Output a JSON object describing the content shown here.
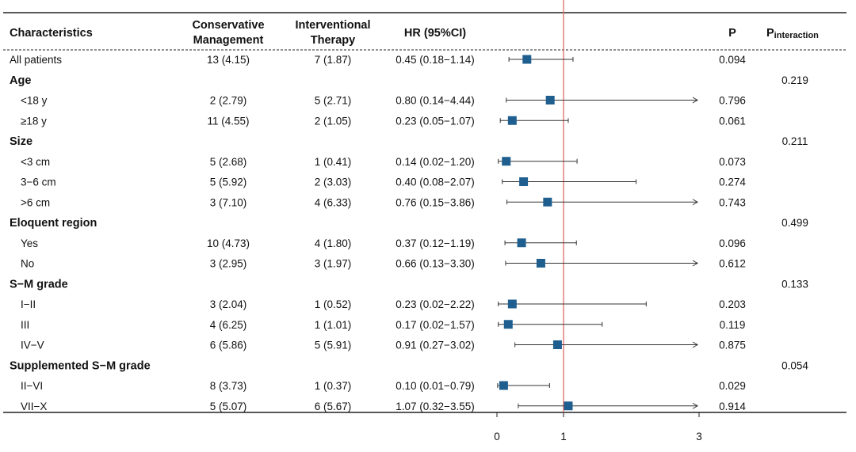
{
  "headers": {
    "characteristics": "Characteristics",
    "conservative_line1": "Conservative",
    "conservative_line2": "Management",
    "interventional_line1": "Interventional",
    "interventional_line2": "Therapy",
    "hr": "HR (95%CI)",
    "p": "P",
    "p_interaction_main": "P",
    "p_interaction_sub": "interaction"
  },
  "colors": {
    "marker": "#1f5f8f",
    "reference_line": "#e06a6a",
    "rule": "#222222"
  },
  "chart_data": {
    "type": "forest",
    "title": "",
    "xlabel": "",
    "reference_value": 1,
    "x_ticks": [
      {
        "value": 0,
        "label": "0"
      },
      {
        "value": 1,
        "label": "1"
      },
      {
        "value": 3,
        "label": "3"
      }
    ],
    "xlim": [
      0,
      3
    ],
    "rows": [
      {
        "kind": "item",
        "indent": false,
        "label": "All patients",
        "conservative": "13 (4.15)",
        "interventional": "7 (1.87)",
        "hr_text": "0.45 (0.18−1.14)",
        "p": "0.094",
        "p_interaction": "",
        "hr": 0.45,
        "lower": 0.18,
        "upper": 1.14,
        "arrow": false
      },
      {
        "kind": "group",
        "label": "Age",
        "p_interaction": "0.219"
      },
      {
        "kind": "item",
        "indent": true,
        "label": "<18 y",
        "conservative": "2 (2.79)",
        "interventional": "5 (2.71)",
        "hr_text": "0.80 (0.14−4.44)",
        "p": "0.796",
        "p_interaction": "",
        "hr": 0.8,
        "lower": 0.14,
        "upper": 4.44,
        "arrow": true
      },
      {
        "kind": "item",
        "indent": true,
        "label": "≥18 y",
        "conservative": "11 (4.55)",
        "interventional": "2 (1.05)",
        "hr_text": "0.23 (0.05−1.07)",
        "p": "0.061",
        "p_interaction": "",
        "hr": 0.23,
        "lower": 0.05,
        "upper": 1.07,
        "arrow": false
      },
      {
        "kind": "group",
        "label": "Size",
        "p_interaction": "0.211"
      },
      {
        "kind": "item",
        "indent": true,
        "label": "<3 cm",
        "conservative": "5 (2.68)",
        "interventional": "1 (0.41)",
        "hr_text": "0.14 (0.02−1.20)",
        "p": "0.073",
        "p_interaction": "",
        "hr": 0.14,
        "lower": 0.02,
        "upper": 1.2,
        "arrow": false
      },
      {
        "kind": "item",
        "indent": true,
        "label": "3−6 cm",
        "conservative": "5 (5.92)",
        "interventional": "2 (3.03)",
        "hr_text": "0.40 (0.08−2.07)",
        "p": "0.274",
        "p_interaction": "",
        "hr": 0.4,
        "lower": 0.08,
        "upper": 2.07,
        "arrow": false
      },
      {
        "kind": "item",
        "indent": true,
        "label": ">6 cm",
        "conservative": "3 (7.10)",
        "interventional": "4 (6.33)",
        "hr_text": "0.76 (0.15−3.86)",
        "p": "0.743",
        "p_interaction": "",
        "hr": 0.76,
        "lower": 0.15,
        "upper": 3.86,
        "arrow": true
      },
      {
        "kind": "group",
        "label": "Eloquent region",
        "p_interaction": "0.499"
      },
      {
        "kind": "item",
        "indent": true,
        "label": "Yes",
        "conservative": "10 (4.73)",
        "interventional": "4 (1.80)",
        "hr_text": "0.37 (0.12−1.19)",
        "p": "0.096",
        "p_interaction": "",
        "hr": 0.37,
        "lower": 0.12,
        "upper": 1.19,
        "arrow": false
      },
      {
        "kind": "item",
        "indent": true,
        "label": "No",
        "conservative": "3 (2.95)",
        "interventional": "3 (1.97)",
        "hr_text": "0.66 (0.13−3.30)",
        "p": "0.612",
        "p_interaction": "",
        "hr": 0.66,
        "lower": 0.13,
        "upper": 3.3,
        "arrow": true
      },
      {
        "kind": "group",
        "label": "S−M grade",
        "p_interaction": "0.133"
      },
      {
        "kind": "item",
        "indent": true,
        "label": "I−II",
        "conservative": "3 (2.04)",
        "interventional": "1 (0.52)",
        "hr_text": "0.23 (0.02−2.22)",
        "p": "0.203",
        "p_interaction": "",
        "hr": 0.23,
        "lower": 0.02,
        "upper": 2.22,
        "arrow": false
      },
      {
        "kind": "item",
        "indent": true,
        "label": "III",
        "conservative": "4 (6.25)",
        "interventional": "1 (1.01)",
        "hr_text": "0.17 (0.02−1.57)",
        "p": "0.119",
        "p_interaction": "",
        "hr": 0.17,
        "lower": 0.02,
        "upper": 1.57,
        "arrow": false
      },
      {
        "kind": "item",
        "indent": true,
        "label": "IV−V",
        "conservative": "6 (5.86)",
        "interventional": "5 (5.91)",
        "hr_text": "0.91 (0.27−3.02)",
        "p": "0.875",
        "p_interaction": "",
        "hr": 0.91,
        "lower": 0.27,
        "upper": 3.02,
        "arrow": true
      },
      {
        "kind": "group",
        "label": "Supplemented S−M grade",
        "p_interaction": "0.054"
      },
      {
        "kind": "item",
        "indent": true,
        "label": "II−VI",
        "conservative": "8 (3.73)",
        "interventional": "1 (0.37)",
        "hr_text": "0.10 (0.01−0.79)",
        "p": "0.029",
        "p_interaction": "",
        "hr": 0.1,
        "lower": 0.01,
        "upper": 0.79,
        "arrow": false
      },
      {
        "kind": "item",
        "indent": true,
        "label": "VII−X",
        "conservative": "5 (5.07)",
        "interventional": "6 (5.67)",
        "hr_text": "1.07 (0.32−3.55)",
        "p": "0.914",
        "p_interaction": "",
        "hr": 1.07,
        "lower": 0.32,
        "upper": 3.55,
        "arrow": true
      }
    ]
  }
}
